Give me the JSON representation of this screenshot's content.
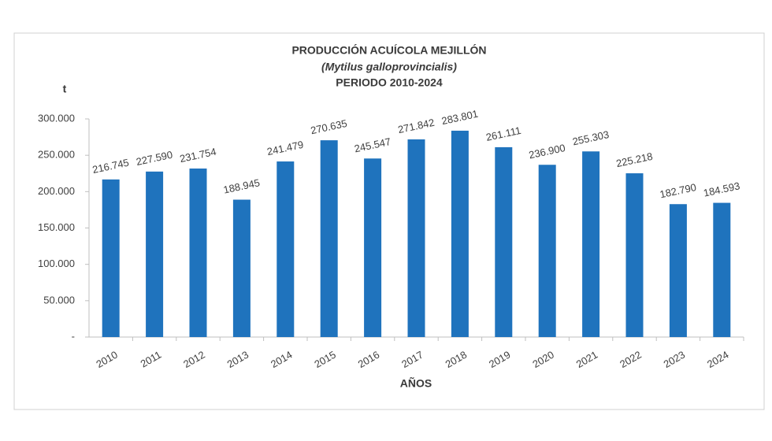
{
  "chart_data": {
    "type": "bar",
    "title": "PRODUCCIÓN ACUÍCOLA MEJILLÓN",
    "subtitle": "(Mytilus galloprovincialis)",
    "period": "PERIODO 2010-2024",
    "y_label": "t",
    "x_label": "AÑOS",
    "categories": [
      "2010",
      "2011",
      "2012",
      "2013",
      "2014",
      "2015",
      "2016",
      "2017",
      "2018",
      "2019",
      "2020",
      "2021",
      "2022",
      "2023",
      "2024"
    ],
    "values": [
      216745,
      227590,
      231754,
      188945,
      241479,
      270635,
      245547,
      271842,
      283801,
      261111,
      236900,
      255303,
      225218,
      182790,
      184593
    ],
    "value_labels": [
      "216.745",
      "227.590",
      "231.754",
      "188.945",
      "241.479",
      "270.635",
      "245.547",
      "271.842",
      "283.801",
      "261.111",
      "236.900",
      "255.303",
      "225.218",
      "182.790",
      "184.593"
    ],
    "color": "#1f73bd",
    "ylim": [
      0,
      300000
    ],
    "yticks": [
      {
        "value": 0,
        "label": "-"
      },
      {
        "value": 50000,
        "label": "50.000"
      },
      {
        "value": 100000,
        "label": "100.000"
      },
      {
        "value": 150000,
        "label": "150.000"
      },
      {
        "value": 200000,
        "label": "200.000"
      },
      {
        "value": 250000,
        "label": "250.000"
      },
      {
        "value": 300000,
        "label": "300.000"
      }
    ],
    "grid": false
  }
}
